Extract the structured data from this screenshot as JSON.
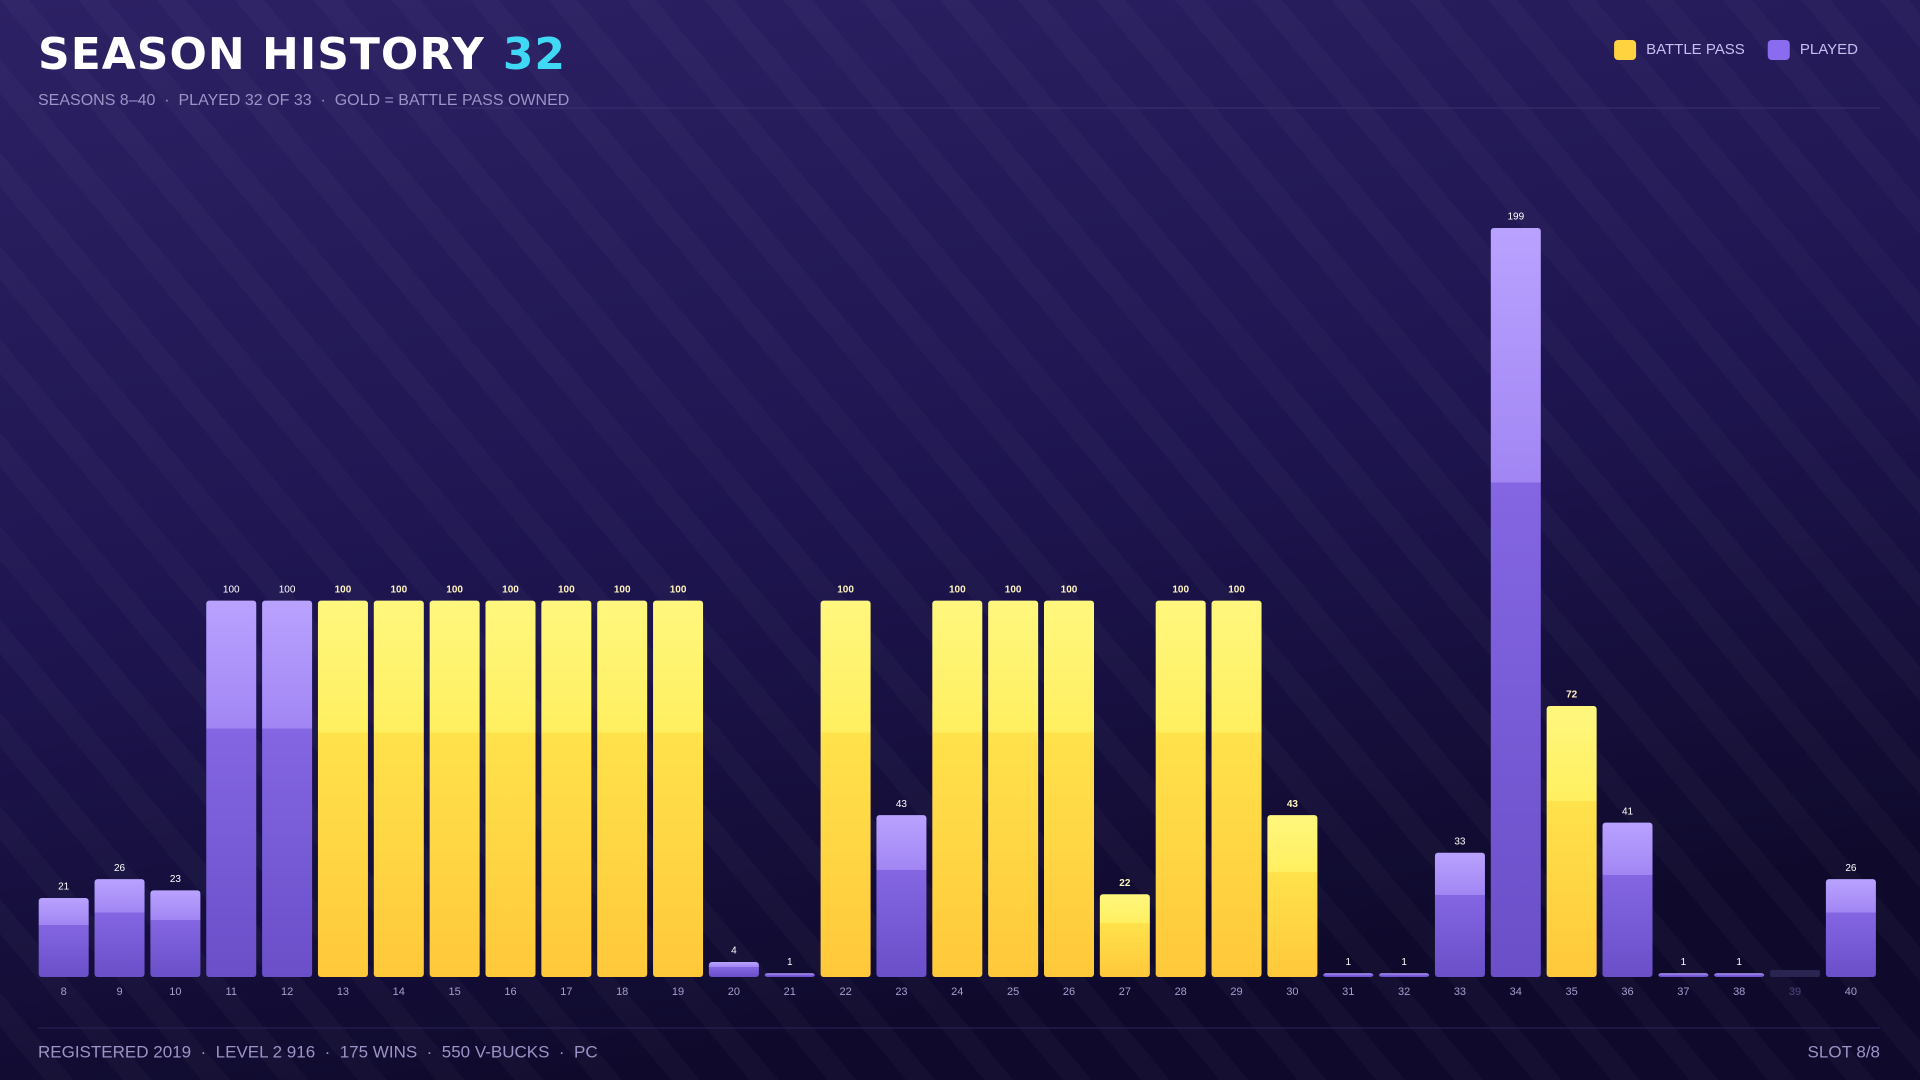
{
  "chart_data": {
    "type": "bar",
    "title": "SEASON HISTORY",
    "title_badge": "32",
    "subtitle": "SEASONS 8–40  ·  PLAYED 32 OF 33  ·  GOLD = BATTLE PASS OWNED",
    "legend": [
      {
        "name": "BATTLE PASS",
        "color": "#ffd23f"
      },
      {
        "name": "PLAYED",
        "color": "#8a6cf0"
      }
    ],
    "categories": [
      "8",
      "9",
      "10",
      "11",
      "12",
      "13",
      "14",
      "15",
      "16",
      "17",
      "18",
      "19",
      "20",
      "21",
      "22",
      "23",
      "24",
      "25",
      "26",
      "27",
      "28",
      "29",
      "30",
      "31",
      "32",
      "33",
      "34",
      "35",
      "36",
      "37",
      "38",
      "39",
      "40"
    ],
    "values": [
      21,
      26,
      23,
      100,
      100,
      100,
      100,
      100,
      100,
      100,
      100,
      100,
      4,
      1,
      100,
      43,
      100,
      100,
      100,
      22,
      100,
      100,
      43,
      1,
      1,
      33,
      199,
      72,
      41,
      1,
      1,
      null,
      26
    ],
    "battle_pass": [
      false,
      false,
      false,
      false,
      false,
      true,
      true,
      true,
      true,
      true,
      true,
      true,
      false,
      false,
      true,
      false,
      true,
      true,
      true,
      true,
      true,
      true,
      true,
      false,
      false,
      false,
      false,
      true,
      false,
      false,
      false,
      false,
      false
    ],
    "footer": "REGISTERED 2019  ·  LEVEL 2 916  ·  175 WINS  ·  550 V-BUCKS  ·  PC",
    "footer_right": "SLOT 8/8"
  }
}
